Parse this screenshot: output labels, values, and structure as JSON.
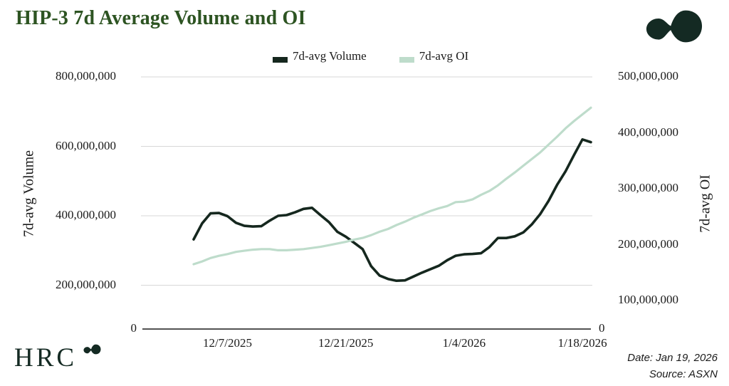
{
  "title": "HIP-3 7d Average Volume and OI",
  "legend": {
    "items": [
      {
        "label": "7d-avg Volume",
        "color": "#15271e"
      },
      {
        "label": "7d-avg OI",
        "color": "#bedccb"
      }
    ]
  },
  "left_axis": {
    "title": "7d-avg Volume",
    "ticks": [
      "800,000,000",
      "600,000,000",
      "400,000,000",
      "200,000,000",
      "0"
    ],
    "max": 800000000
  },
  "right_axis": {
    "title": "7d-avg OI",
    "ticks": [
      "500,000,000",
      "400,000,000",
      "300,000,000",
      "200,000,000",
      "100,000,000",
      "0"
    ],
    "max": 500000000
  },
  "x_axis": {
    "ticks": [
      "12/7/2025",
      "12/21/2025",
      "1/4/2026",
      "1/18/2026"
    ]
  },
  "footer": {
    "brand": "HRC",
    "date_note": "Date: Jan 19, 2026",
    "source_note": "Source: ASXN"
  },
  "colors": {
    "title": "#2d5422",
    "brand": "#142a23",
    "logo": "#142a23",
    "axis_line": "#1a1a1a",
    "gridline": "#d7d7d7",
    "volume_line": "#15271e",
    "oi_line": "#bedccb"
  },
  "chart_data": {
    "type": "line",
    "title": "HIP-3 7d Average Volume and OI",
    "left_ylabel": "7d-avg Volume",
    "right_ylabel": "7d-avg OI",
    "left_ylim": [
      0,
      800000000
    ],
    "right_ylim": [
      0,
      500000000
    ],
    "grid": true,
    "legend_position": "top-center",
    "x": [
      "12/3/2025",
      "12/4/2025",
      "12/5/2025",
      "12/6/2025",
      "12/7/2025",
      "12/8/2025",
      "12/9/2025",
      "12/10/2025",
      "12/11/2025",
      "12/12/2025",
      "12/13/2025",
      "12/14/2025",
      "12/15/2025",
      "12/16/2025",
      "12/17/2025",
      "12/18/2025",
      "12/19/2025",
      "12/20/2025",
      "12/21/2025",
      "12/22/2025",
      "12/23/2025",
      "12/24/2025",
      "12/25/2025",
      "12/26/2025",
      "12/27/2025",
      "12/28/2025",
      "12/29/2025",
      "12/30/2025",
      "12/31/2025",
      "1/1/2026",
      "1/2/2026",
      "1/3/2026",
      "1/4/2026",
      "1/5/2026",
      "1/6/2026",
      "1/7/2026",
      "1/8/2026",
      "1/9/2026",
      "1/10/2026",
      "1/11/2026",
      "1/12/2026",
      "1/13/2026",
      "1/14/2026",
      "1/15/2026",
      "1/16/2026",
      "1/17/2026",
      "1/18/2026",
      "1/19/2026"
    ],
    "series": [
      {
        "name": "7d-avg Volume",
        "axis": "left",
        "color": "#15271e",
        "values": [
          332000000,
          378000000,
          407000000,
          408000000,
          399000000,
          380000000,
          371000000,
          369000000,
          370000000,
          386000000,
          400000000,
          402000000,
          410000000,
          420000000,
          423000000,
          402000000,
          382000000,
          354000000,
          340000000,
          322000000,
          304000000,
          255000000,
          228000000,
          218000000,
          213000000,
          214000000,
          225000000,
          236000000,
          246000000,
          256000000,
          272000000,
          285000000,
          289000000,
          290000000,
          292000000,
          310000000,
          336000000,
          336000000,
          341000000,
          352000000,
          375000000,
          405000000,
          443000000,
          489000000,
          528000000,
          575000000,
          620000000,
          612000000
        ]
      },
      {
        "name": "7d-avg OI",
        "axis": "right",
        "color": "#bedccb",
        "values": [
          165000000,
          170000000,
          176000000,
          180000000,
          183000000,
          187000000,
          189000000,
          191000000,
          192000000,
          192000000,
          190000000,
          190000000,
          191000000,
          192000000,
          194000000,
          196000000,
          199000000,
          202000000,
          205000000,
          209000000,
          212000000,
          217000000,
          223000000,
          228000000,
          235000000,
          241000000,
          248000000,
          254000000,
          260000000,
          265000000,
          269000000,
          276000000,
          277000000,
          281000000,
          289000000,
          296000000,
          306000000,
          318000000,
          329000000,
          341000000,
          353000000,
          365000000,
          379000000,
          393000000,
          408000000,
          421000000,
          433000000,
          445000000
        ]
      }
    ]
  }
}
